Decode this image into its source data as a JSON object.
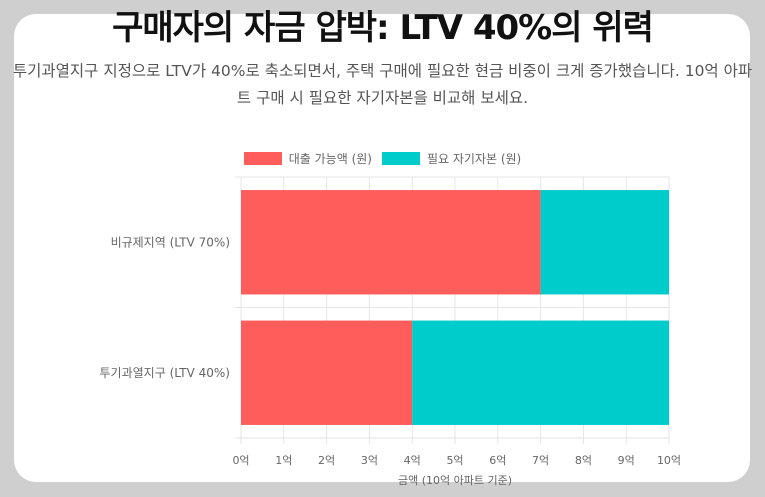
{
  "title": "구매자의 자금 압박: LTV 40%의 위력",
  "subtitle": "투기과열지구 지정으로 LTV가 40%로 축소되면서, 주택 구매에 필요한 현금 비중이 크게 증가했습니다. 10억 아파트 구매 시 필요한 자기자본을 비교해 보세요.",
  "colors": {
    "loan": "#ff5c5c",
    "equity": "#00cccc",
    "background": "#cfcfcf"
  },
  "chart_data": {
    "type": "bar",
    "orientation": "horizontal",
    "stacked": true,
    "categories": [
      "비규제지역 (LTV 70%)",
      "투기과열지구 (LTV 40%)"
    ],
    "series": [
      {
        "name": "대출 가능액 (원)",
        "values": [
          7,
          4
        ],
        "color": "#ff5c5c"
      },
      {
        "name": "필요 자기자본 (원)",
        "values": [
          3,
          6
        ],
        "color": "#00cccc"
      }
    ],
    "xlabel": "금액 (10억 아파트 기준)",
    "ylabel": "",
    "xlim": [
      0,
      10
    ],
    "xticks": [
      "0억",
      "1억",
      "2억",
      "3억",
      "4억",
      "5억",
      "6억",
      "7억",
      "8억",
      "9억",
      "10억"
    ],
    "grid": true,
    "legend_position": "top"
  }
}
